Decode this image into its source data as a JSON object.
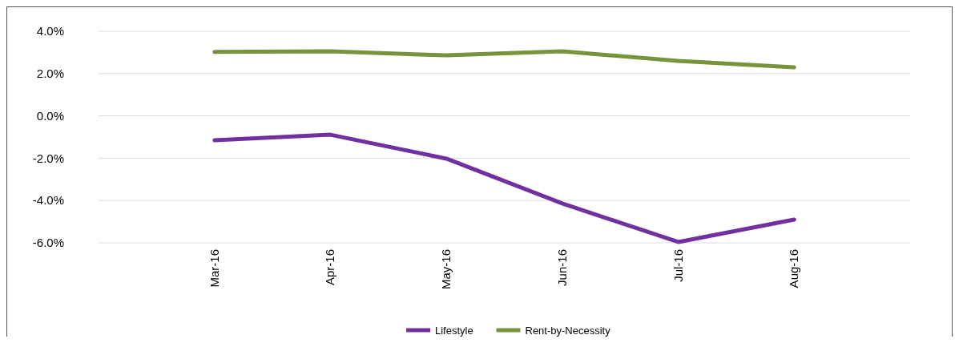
{
  "chart_data": {
    "type": "line",
    "categories": [
      null,
      "Mar-16",
      "Apr-16",
      "May-16",
      "Jun-16",
      "Jul-16",
      "Aug-16",
      null
    ],
    "series": [
      {
        "name": "Lifestyle",
        "color": "#7030a0",
        "values": [
          null,
          -1.15,
          -0.89,
          -2.02,
          -4.14,
          -5.96,
          -4.9,
          null
        ]
      },
      {
        "name": "Rent-by-Necessity",
        "color": "#77933c",
        "values": [
          null,
          3.02,
          3.05,
          2.86,
          3.05,
          2.6,
          2.3,
          null
        ]
      }
    ],
    "ylim": [
      -6,
      4
    ],
    "yticks": [
      {
        "value": -6,
        "label": "-6.0%"
      },
      {
        "value": -4,
        "label": "-4.0%"
      },
      {
        "value": -2,
        "label": "-2.0%"
      },
      {
        "value": 0,
        "label": "0.0%"
      },
      {
        "value": 2,
        "label": "2.0%"
      },
      {
        "value": 4,
        "label": "4.0%"
      }
    ],
    "grid": "y",
    "legend": "bottom",
    "marker": "none",
    "line_style": "solid"
  }
}
